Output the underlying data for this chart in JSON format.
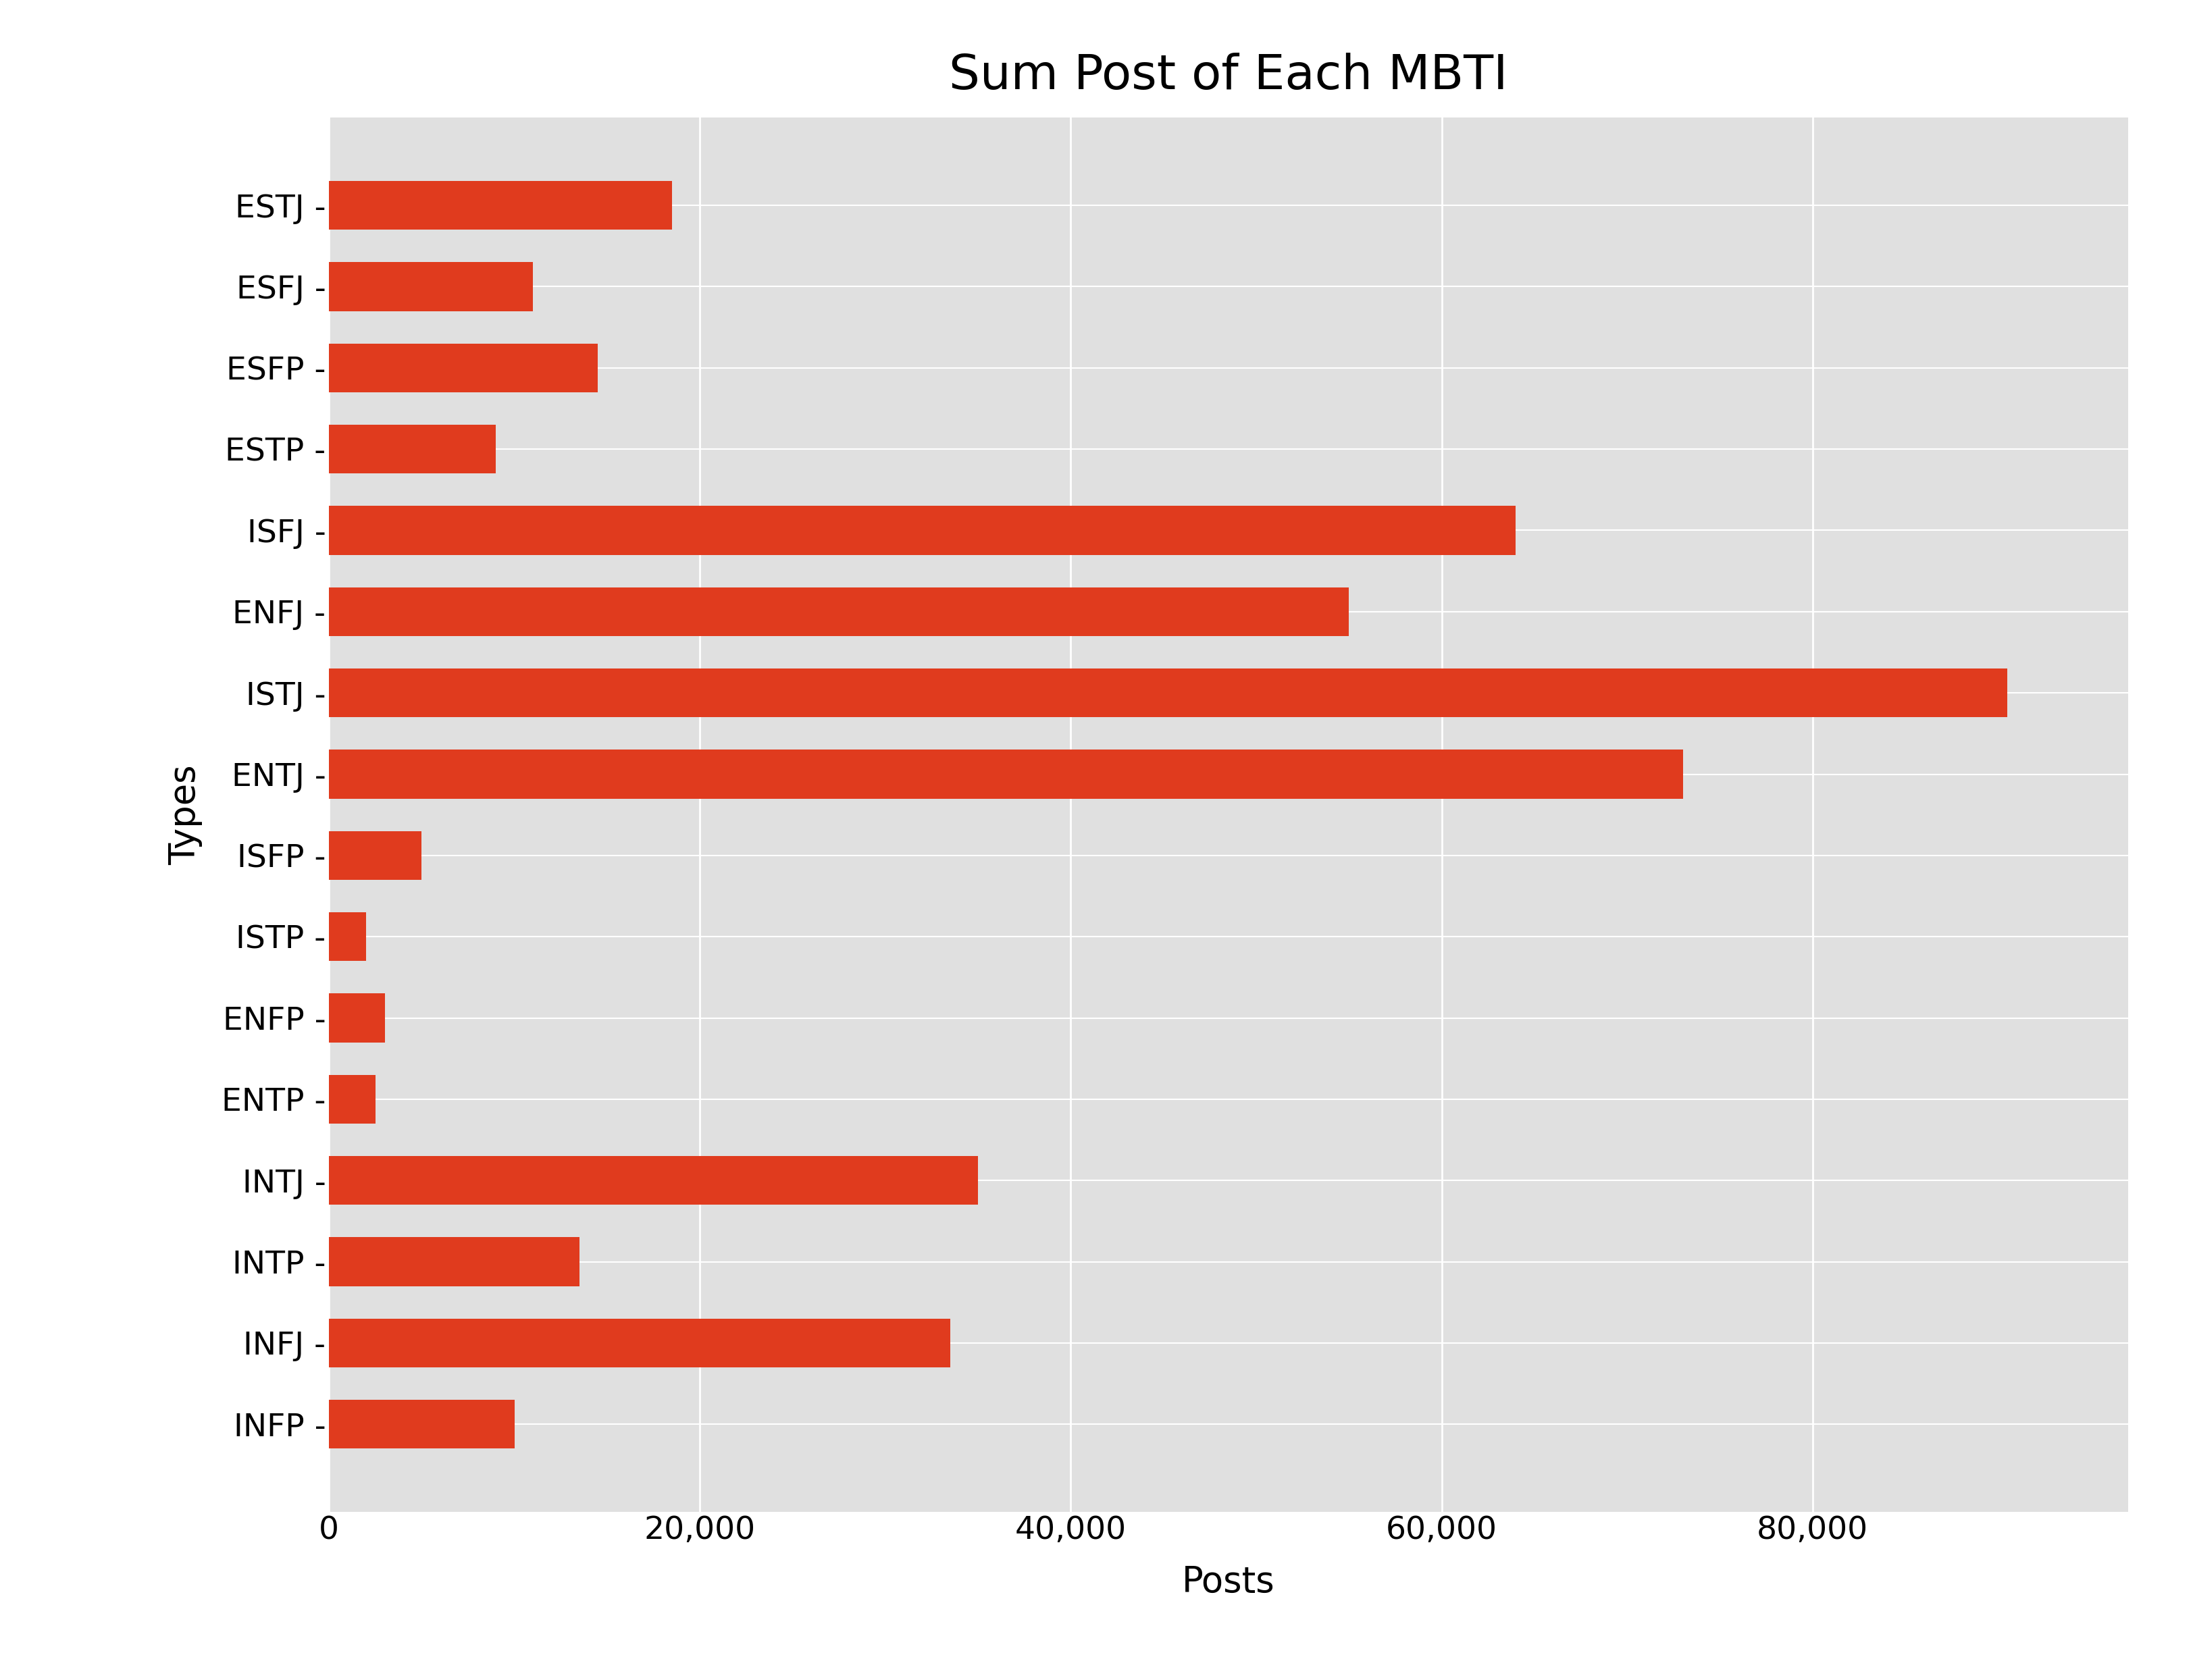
{
  "title": "Sum Post of Each MBTI",
  "xlabel": "Posts",
  "ylabel": "Types",
  "categories": [
    "ESTJ",
    "ESFJ",
    "ESFP",
    "ESTP",
    "ISFJ",
    "ENFJ",
    "ISTJ",
    "ENTJ",
    "ISFP",
    "ISTP",
    "ENFP",
    "ENTP",
    "INTJ",
    "INTP",
    "INFJ",
    "INFP"
  ],
  "values": [
    18500,
    11000,
    14500,
    9000,
    64000,
    55000,
    90500,
    73000,
    5000,
    2000,
    3000,
    2500,
    35000,
    13500,
    33500,
    10000
  ],
  "bar_color": "#e03b1e",
  "plot_background_color": "#e0e0e0",
  "figure_facecolor": "#ffffff",
  "xlim": [
    0,
    97000
  ],
  "title_fontsize": 52,
  "label_fontsize": 38,
  "tick_fontsize": 34,
  "bar_height": 0.6
}
